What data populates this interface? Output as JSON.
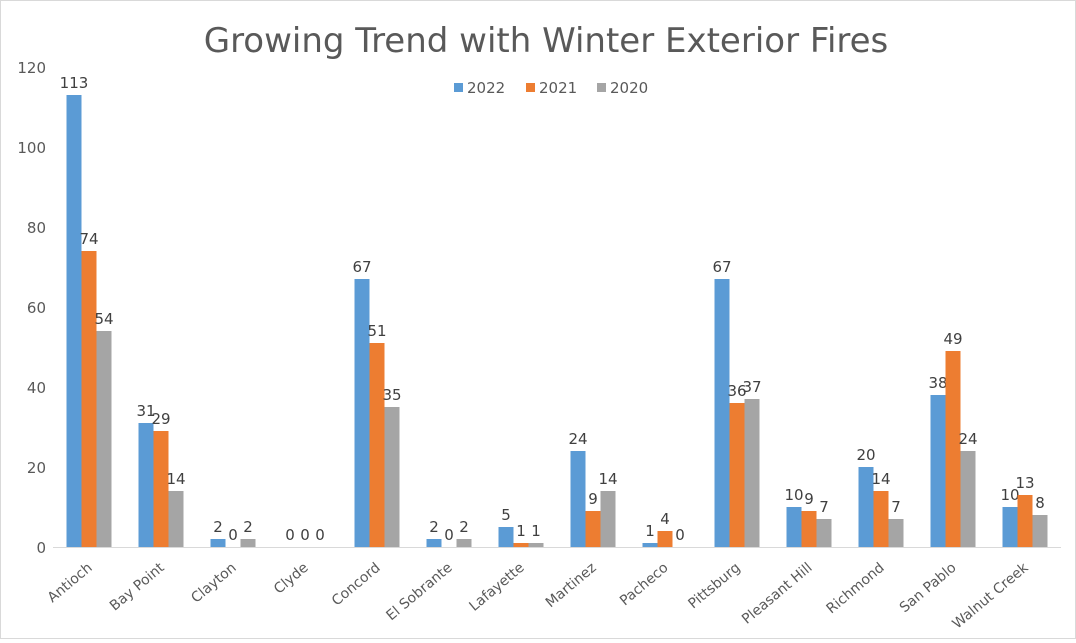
{
  "chart_data": {
    "type": "bar",
    "title": "Growing Trend with Winter Exterior Fires",
    "xlabel": "",
    "ylabel": "",
    "ylim": [
      0,
      120
    ],
    "yticks": [
      0,
      20,
      40,
      60,
      80,
      100,
      120
    ],
    "grid": false,
    "legend_position": "top",
    "categories": [
      "Antioch",
      "Bay Point",
      "Clayton",
      "Clyde",
      "Concord",
      "El Sobrante",
      "Lafayette",
      "Martinez",
      "Pacheco",
      "Pittsburg",
      "Pleasant Hill",
      "Richmond",
      "San Pablo",
      "Walnut Creek"
    ],
    "series": [
      {
        "name": "2022",
        "color": "#5b9bd5",
        "values": [
          113,
          31,
          2,
          0,
          67,
          2,
          5,
          24,
          1,
          67,
          10,
          20,
          38,
          10
        ]
      },
      {
        "name": "2021",
        "color": "#ed7d31",
        "values": [
          74,
          29,
          0,
          0,
          51,
          0,
          1,
          9,
          4,
          36,
          9,
          14,
          49,
          13
        ]
      },
      {
        "name": "2020",
        "color": "#a5a5a5",
        "values": [
          54,
          14,
          2,
          0,
          35,
          2,
          1,
          14,
          0,
          37,
          7,
          7,
          24,
          8
        ]
      }
    ]
  }
}
